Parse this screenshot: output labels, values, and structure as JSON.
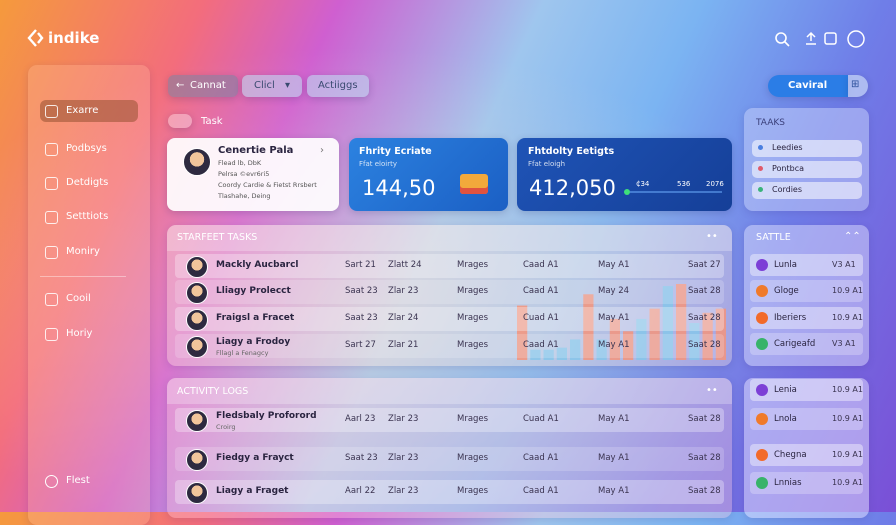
{
  "brand": "indike",
  "sidebar": {
    "items": [
      "Exarre",
      "Podbsys",
      "Detdigts",
      "Setttiots",
      "Moniry",
      "Cooil",
      "Horiy"
    ],
    "footer": "Flest"
  },
  "toolbar": {
    "buttons": [
      "Cannat",
      "Clicl",
      "Actiiggs"
    ],
    "primary": "Caviral"
  },
  "section_label": "Task",
  "profile": {
    "name": "Cenertie Pala",
    "lines": [
      "Flead lb, DbK",
      "Pelrsa ©evr6ri5",
      "Coordy Cardie & Fietst Rrsbert",
      "Tlashahe, Deing"
    ]
  },
  "stats": [
    {
      "title": "Fhrity Ecriate",
      "subtitle": "Ffat eloirty",
      "value": "144,50"
    },
    {
      "title": "Fhtdolty Eetigts",
      "subtitle": "Ffat eloigh",
      "value": "412,050",
      "legend": [
        "₵34",
        "536",
        "2076"
      ]
    }
  ],
  "tasks_panel": {
    "title": "STARFEET TASKS",
    "rows": [
      {
        "name": "Mackly Aucbarcl",
        "cells": [
          "Sart 21",
          "Zlatt 24",
          "Mrages",
          "Caad A1",
          "May A1",
          "Saat 27"
        ]
      },
      {
        "name": "Lliagy Prolecct",
        "cells": [
          "Saat 23",
          "Zlar 23",
          "Mrages",
          "Caad A1",
          "May 24",
          "Saat 28"
        ]
      },
      {
        "name": "Fraigsl a Fracet",
        "cells": [
          "Saat 23",
          "Zlar 24",
          "Mrages",
          "Cuad A1",
          "May A1",
          "Saat 28"
        ]
      },
      {
        "name": "Liagy a Frodoy",
        "sub": "Fllagl a Fenagcy",
        "cells": [
          "Sart 27",
          "Zlar 21",
          "Mrages",
          "Caad A1",
          "May A1",
          "Saat 28"
        ]
      }
    ],
    "mini_chart": {
      "values": [
        53,
        10,
        10,
        12,
        20,
        64,
        20,
        40,
        28,
        40,
        50,
        72,
        74,
        36,
        46,
        50
      ],
      "colors": [
        "#f3947c",
        "#86c6ea",
        "#86c6ea",
        "#86c6ea",
        "#86c6ea",
        "#f3947c",
        "#86c6ea",
        "#f3947c",
        "#f3947c",
        "#86c6ea",
        "#f3947c",
        "#86c6ea",
        "#f3947c",
        "#86c6ea",
        "#f3947c",
        "#f3947c"
      ]
    }
  },
  "activity_panel": {
    "title": "ACTIVITY LOGS",
    "rows": [
      {
        "name": "Fledsbaly Proforord",
        "sub": "Croirg",
        "cells": [
          "Aarl 23",
          "Zlar 23",
          "Mrages",
          "Cuad A1",
          "May A1",
          "Saat 28"
        ]
      },
      {
        "name": "Fiedgy a Frayct",
        "cells": [
          "Saat 23",
          "Zlar 23",
          "Mrages",
          "Caad A1",
          "May A1",
          "Saat 28"
        ]
      },
      {
        "name": "Liagy a Fraget",
        "cells": [
          "Aarl 22",
          "Zlar 23",
          "Mrages",
          "Caad A1",
          "May A1",
          "Saat 28"
        ]
      }
    ]
  },
  "right_tasks": {
    "title": "TAAKS",
    "items": [
      "Leedies",
      "Pontbca",
      "Cordies"
    ]
  },
  "sattle": {
    "title": "SATTLE",
    "items": [
      {
        "name": "Lunla",
        "value": "V3 A1"
      },
      {
        "name": "Gloge",
        "value": "10.9 A1"
      },
      {
        "name": "Iberiers",
        "value": "10.9 A1"
      },
      {
        "name": "Carigeafd",
        "value": "V3 A1"
      }
    ]
  },
  "bottom_right": {
    "items": [
      {
        "name": "Lenia",
        "value": "10.9 A1"
      },
      {
        "name": "Lnola",
        "value": "10.9 A1"
      },
      {
        "name": "Chegna",
        "value": "10.9 A1"
      },
      {
        "name": "Lnnias",
        "value": "10.9 A1"
      }
    ]
  }
}
